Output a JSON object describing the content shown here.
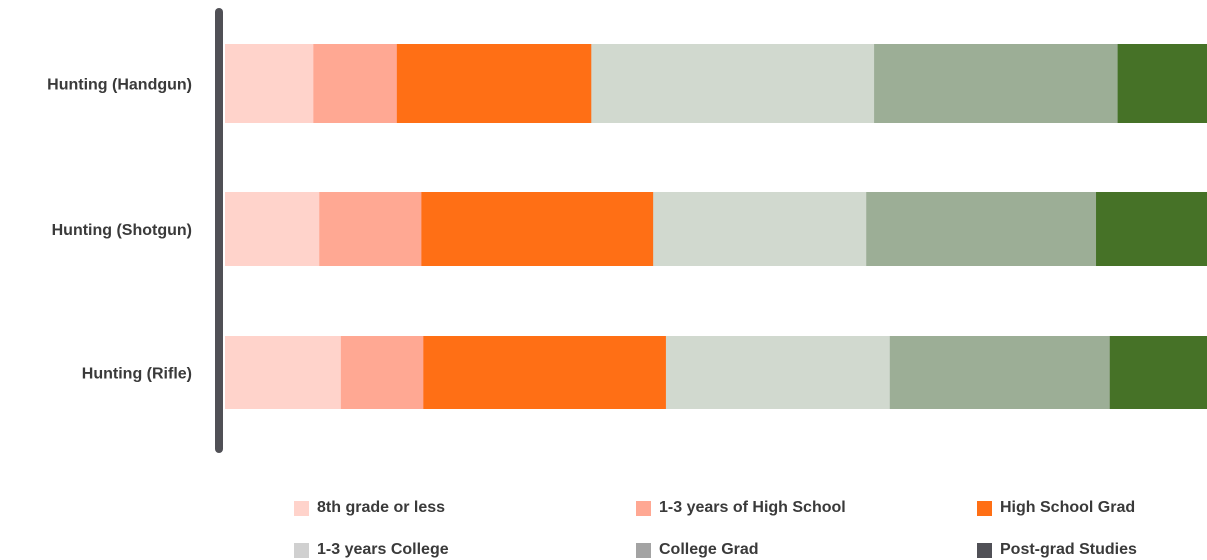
{
  "chart_data": {
    "type": "bar",
    "orientation": "horizontal",
    "stacked": true,
    "normalized": true,
    "title": "",
    "xlabel": "",
    "ylabel": "",
    "grid": false,
    "legend_position": "bottom",
    "categories": [
      "Hunting (Handgun)",
      "Hunting (Shotgun)",
      "Hunting (Rifle)"
    ],
    "series": [
      {
        "name": "8th grade or less",
        "color": "#FFD3CB",
        "values": [
          9.0,
          9.6,
          11.8
        ]
      },
      {
        "name": "1-3 years of High School",
        "color": "#FFA893",
        "values": [
          8.5,
          10.4,
          8.4
        ]
      },
      {
        "name": "High School Grad",
        "color": "#FF6F15",
        "values": [
          19.8,
          23.6,
          24.7
        ]
      },
      {
        "name": "1-3 years College",
        "color": "#D1D9CF",
        "values": [
          28.8,
          21.7,
          22.8
        ]
      },
      {
        "name": "College Grad",
        "color": "#9CAE96",
        "values": [
          24.8,
          23.4,
          22.4
        ]
      },
      {
        "name": "Post-grad Studies",
        "color": "#467227",
        "values": [
          9.1,
          11.3,
          9.9
        ]
      }
    ],
    "legend": [
      {
        "label": "8th grade or less",
        "color": "#FFD3CB"
      },
      {
        "label": "1-3 years of High School",
        "color": "#FFA893"
      },
      {
        "label": "High School Grad",
        "color": "#FF6F15"
      },
      {
        "label": "1-3 years College",
        "color": "#D0D0D0"
      },
      {
        "label": "College Grad",
        "color": "#A3A3A3"
      },
      {
        "label": "Post-grad Studies",
        "color": "#505056"
      }
    ]
  }
}
